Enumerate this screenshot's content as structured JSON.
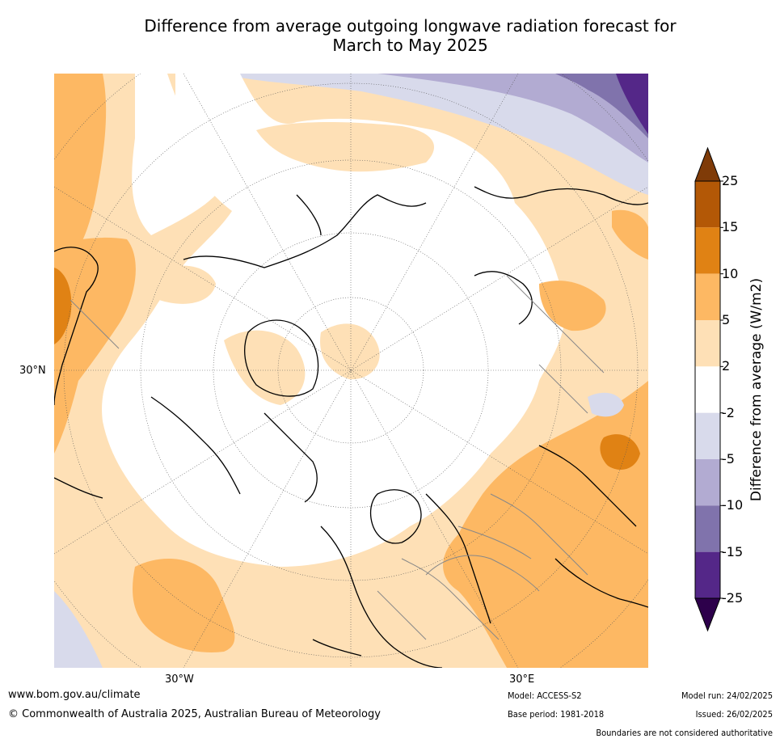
{
  "title_line1": "Difference from average outgoing longwave radiation forecast for",
  "title_line2": "March to May 2025",
  "axis_labels": {
    "lat_30n": "30°N",
    "lon_30w": "30°W",
    "lon_30e": "30°E"
  },
  "colorbar": {
    "label": "Difference from average (W/m2)",
    "ticks": [
      "25",
      "15",
      "10",
      "5",
      "2",
      "-2",
      "-5",
      "-10",
      "-15",
      "-25"
    ],
    "colors": {
      "gt25": "#7f3b08",
      "15_25": "#b35806",
      "10_15": "#e08214",
      "5_10": "#fdb863",
      "2_5": "#fee0b6",
      "m2_2": "#ffffff",
      "m5_m2": "#d8daeb",
      "m10_m5": "#b2abd2",
      "m15_m10": "#8073ac",
      "m25_m15": "#542788",
      "lt_m25": "#2d004b"
    }
  },
  "footer": {
    "website": "www.bom.gov.au/climate",
    "copyright": "© Commonwealth of Australia 2025, Australian Bureau of Meteorology",
    "model": "Model: ACCESS-S2",
    "base_period": "Base period: 1981-2018",
    "model_run": "Model run: 24/02/2025",
    "issued": "Issued: 26/02/2025",
    "disclaimer": "Boundaries are not considered authoritative"
  }
}
